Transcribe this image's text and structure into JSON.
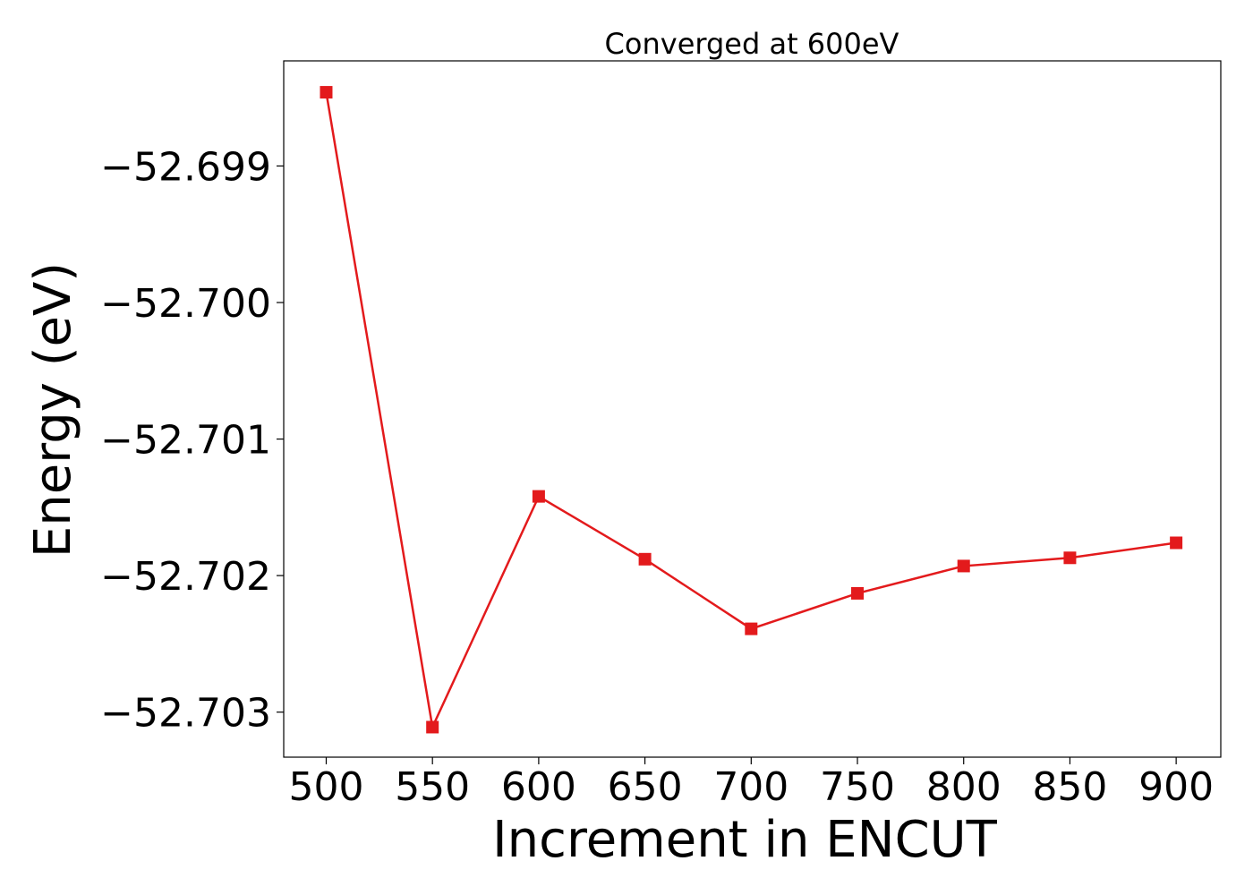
{
  "chart_data": {
    "type": "line",
    "title": "Converged at 600eV",
    "xlabel": "Increment in ENCUT",
    "ylabel": "Energy (eV)",
    "x": [
      500,
      550,
      600,
      650,
      700,
      750,
      800,
      850,
      900
    ],
    "series": [
      {
        "values": [
          -52.69846,
          -52.70311,
          -52.70142,
          -52.70188,
          -52.70239,
          -52.70213,
          -52.70193,
          -52.70187,
          -52.70176
        ],
        "color": "#e31a1c",
        "marker": "square"
      }
    ],
    "xticks": [
      500,
      550,
      600,
      650,
      700,
      750,
      800,
      850,
      900
    ],
    "xtick_labels": [
      "500",
      "550",
      "600",
      "650",
      "700",
      "750",
      "800",
      "850",
      "900"
    ],
    "yticks": [
      -52.699,
      -52.7,
      -52.701,
      -52.702,
      -52.703
    ],
    "ytick_labels": [
      "−52.699",
      "−52.700",
      "−52.701",
      "−52.702",
      "−52.703"
    ],
    "xlim": [
      480,
      921
    ],
    "ylim": [
      -52.70333,
      -52.69823
    ],
    "grid": false,
    "legend": false
  }
}
